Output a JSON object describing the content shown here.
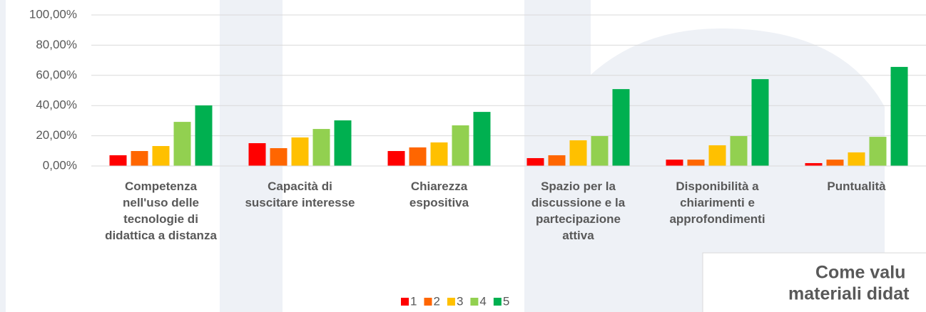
{
  "chart_data": {
    "type": "bar",
    "categories": [
      "Competenza nell'uso delle tecnologie di didattica a distanza",
      "Capacità di suscitare interesse",
      "Chiarezza espositiva",
      "Spazio per la discussione e la partecipazione attiva",
      "Disponibilità a chiarimenti e approfondimenti",
      "Puntualità"
    ],
    "series": [
      {
        "name": "1",
        "color": "#ff0000",
        "values": [
          7.1,
          15.1,
          9.9,
          5.2,
          4.2,
          1.9
        ]
      },
      {
        "name": "2",
        "color": "#ff6600",
        "values": [
          9.9,
          11.8,
          12.3,
          7.1,
          4.2,
          4.2
        ]
      },
      {
        "name": "3",
        "color": "#ffc000",
        "values": [
          13.2,
          18.9,
          15.6,
          17.0,
          13.7,
          9.0
        ]
      },
      {
        "name": "4",
        "color": "#92d050",
        "values": [
          29.2,
          24.5,
          26.9,
          19.8,
          19.8,
          19.3
        ]
      },
      {
        "name": "5",
        "color": "#00b050",
        "values": [
          40.1,
          30.2,
          35.8,
          50.9,
          57.5,
          65.6
        ]
      }
    ],
    "ylim": [
      0,
      100
    ],
    "yticks": [
      {
        "value": 0,
        "label": "0,00%"
      },
      {
        "value": 20,
        "label": "20,00%"
      },
      {
        "value": 40,
        "label": "40,00%"
      },
      {
        "value": 60,
        "label": "60,00%"
      },
      {
        "value": 80,
        "label": "80,00%"
      },
      {
        "value": 100,
        "label": "100,00%"
      }
    ],
    "grid": true,
    "legend": "bottom",
    "annotations": [
      "Come valu",
      "materiali didat"
    ]
  }
}
